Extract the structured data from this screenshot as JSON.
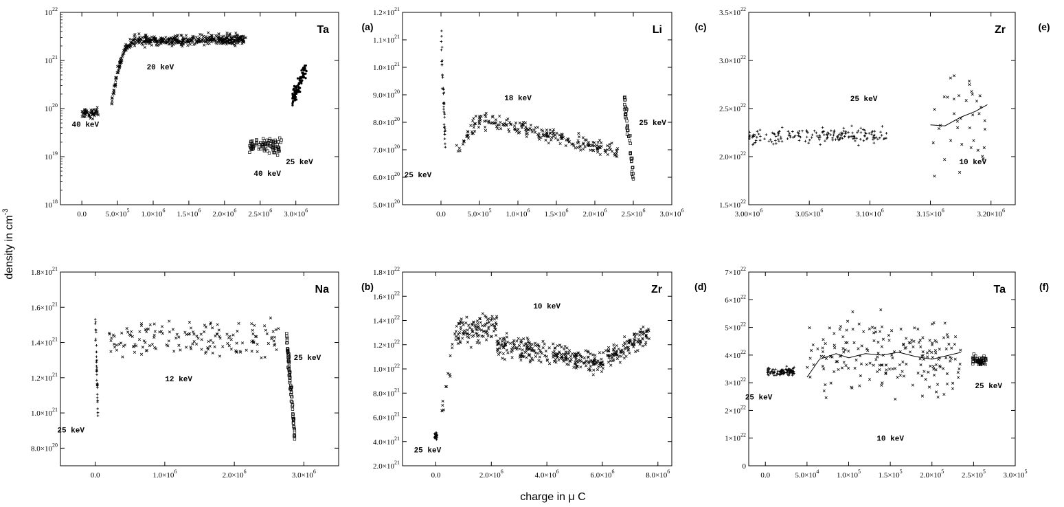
{
  "figure": {
    "ylabel": "density in cm",
    "ylabel_sup": "-3",
    "xlabel": "charge in μ C"
  },
  "chart_data": [
    {
      "panel": "a",
      "letter": "(a)",
      "element": "Ta",
      "type": "scatter",
      "log": true,
      "xlim": [
        -300000,
        3600000
      ],
      "ylim": [
        1e+18,
        1e+22
      ],
      "xticks": [
        {
          "v": 0,
          "m": "0.0",
          "e": ""
        },
        {
          "v": 500000,
          "m": "5.0×10",
          "e": "5"
        },
        {
          "v": 1000000,
          "m": "1.0×10",
          "e": "6"
        },
        {
          "v": 1500000,
          "m": "1.5×10",
          "e": "6"
        },
        {
          "v": 2000000,
          "m": "2.0×10",
          "e": "6"
        },
        {
          "v": 2500000,
          "m": "2.5×10",
          "e": "6"
        },
        {
          "v": 3000000,
          "m": "3.0×10",
          "e": "6"
        }
      ],
      "yticks": [
        {
          "v": 1e+18,
          "m": "10",
          "e": "18"
        },
        {
          "v": 1e+19,
          "m": "10",
          "e": "19"
        },
        {
          "v": 1e+20,
          "m": "10",
          "e": "20"
        },
        {
          "v": 1e+21,
          "m": "10",
          "e": "21"
        },
        {
          "v": 1e+22,
          "m": "10",
          "e": "22"
        }
      ],
      "annotations": [
        {
          "text": "40 keV",
          "x": 50000,
          "y": 4.2e+19
        },
        {
          "text": "20 keV",
          "x": 1100000,
          "y": 6.5e+20
        },
        {
          "text": "40 keV",
          "x": 2600000,
          "y": 4e+18
        },
        {
          "text": "25 keV",
          "x": 3050000,
          "y": 7e+18
        }
      ],
      "series": [
        {
          "marker": "x",
          "segments": [
            {
              "x": [
                0,
                240000
              ],
              "y": [
                8e+19,
                8e+19
              ],
              "n": 60,
              "spread": 0.08,
              "log": true
            },
            {
              "x": [
                400000,
                2300000
              ],
              "y": [
                2.5e+21,
                2.8e+21
              ],
              "n": 500,
              "spread": 0.09,
              "log": true,
              "rise": {
                "from": 8e+19,
                "k": 0.22
              }
            }
          ]
        },
        {
          "marker": "square",
          "segments": [
            {
              "x": [
                2350000,
                2800000
              ],
              "y": [
                1.6e+19,
                1.7e+19
              ],
              "n": 90,
              "spread": 0.15,
              "log": true
            }
          ]
        },
        {
          "marker": "dot",
          "segments": [
            {
              "x": [
                2950000,
                3150000
              ],
              "y": [
                1.5e+20,
                7e+20
              ],
              "n": 90,
              "spread": 0.15,
              "log": true
            }
          ]
        }
      ]
    },
    {
      "panel": "c",
      "letter": "(c)",
      "element": "Li",
      "type": "scatter",
      "log": false,
      "xlim": [
        -500000,
        3000000
      ],
      "ylim": [
        5e+20,
        1.2e+21
      ],
      "xticks": [
        {
          "v": 0,
          "m": "0.0",
          "e": ""
        },
        {
          "v": 500000,
          "m": "5.0×10",
          "e": "5"
        },
        {
          "v": 1000000,
          "m": "1.0×10",
          "e": "6"
        },
        {
          "v": 1500000,
          "m": "1.5×10",
          "e": "6"
        },
        {
          "v": 2000000,
          "m": "2.0×10",
          "e": "6"
        },
        {
          "v": 2500000,
          "m": "2.5×10",
          "e": "6"
        },
        {
          "v": 3000000,
          "m": "3.0×10",
          "e": "6"
        }
      ],
      "yticks": [
        {
          "v": 5e+20,
          "m": "5.0×10",
          "e": "20"
        },
        {
          "v": 6e+20,
          "m": "6.0×10",
          "e": "20"
        },
        {
          "v": 7e+20,
          "m": "7.0×10",
          "e": "20"
        },
        {
          "v": 8e+20,
          "m": "8.0×10",
          "e": "20"
        },
        {
          "v": 9e+20,
          "m": "9.0×10",
          "e": "20"
        },
        {
          "v": 1e+21,
          "m": "1.0×10",
          "e": "21"
        },
        {
          "v": 1.1e+21,
          "m": "1.1×10",
          "e": "21"
        },
        {
          "v": 1.2e+21,
          "m": "1.2×10",
          "e": "21"
        }
      ],
      "annotations": [
        {
          "text": "18 keV",
          "x": 1000000,
          "y": 8.8e+20
        },
        {
          "text": "25 keV",
          "x": -300000,
          "y": 6e+20
        },
        {
          "text": "25 keV",
          "x": 2750000,
          "y": 7.9e+20
        }
      ],
      "series": [
        {
          "marker": "plus",
          "segments": [
            {
              "x": [
                0,
                60000
              ],
              "y": [
                1.12e+21,
                7e+20
              ],
              "n": 40,
              "spread": 0.06,
              "log": false
            }
          ]
        },
        {
          "marker": "x",
          "segments": [
            {
              "x": [
                200000,
                500000
              ],
              "y": [
                7e+20,
                8.1e+20
              ],
              "n": 30,
              "spread": 0.03,
              "log": false
            },
            {
              "x": [
                500000,
                2300000
              ],
              "y": [
                8.1e+20,
                6.95e+20
              ],
              "n": 200,
              "spread": 0.03,
              "log": false
            }
          ]
        },
        {
          "marker": "square",
          "segments": [
            {
              "x": [
                2380000,
                2500000
              ],
              "y": [
                9e+20,
                6e+20
              ],
              "n": 45,
              "spread": 0.05,
              "log": false
            }
          ]
        }
      ]
    },
    {
      "panel": "e",
      "letter": "(e)",
      "element": "Zr",
      "type": "scatter",
      "log": false,
      "xlim": [
        3000000,
        3220000
      ],
      "ylim": [
        1.5e+22,
        3.5e+22
      ],
      "xticks": [
        {
          "v": 3000000,
          "m": "3.00×10",
          "e": "6"
        },
        {
          "v": 3050000,
          "m": "3.05×10",
          "e": "6"
        },
        {
          "v": 3100000,
          "m": "3.10×10",
          "e": "6"
        },
        {
          "v": 3150000,
          "m": "3.15×10",
          "e": "6"
        },
        {
          "v": 3200000,
          "m": "3.20×10",
          "e": "6"
        }
      ],
      "yticks": [
        {
          "v": 1.5e+22,
          "m": "1.5×10",
          "e": "22"
        },
        {
          "v": 2e+22,
          "m": "2.0×10",
          "e": "22"
        },
        {
          "v": 2.5e+22,
          "m": "2.5×10",
          "e": "22"
        },
        {
          "v": 3e+22,
          "m": "3.0×10",
          "e": "22"
        },
        {
          "v": 3.5e+22,
          "m": "3.5×10",
          "e": "22"
        }
      ],
      "annotations": [
        {
          "text": "25 keV",
          "x": 3095000,
          "y": 2.58e+22
        },
        {
          "text": "10 keV",
          "x": 3185000,
          "y": 1.92e+22
        }
      ],
      "series": [
        {
          "marker": "plus",
          "segments": [
            {
              "x": [
                3000000,
                3115000
              ],
              "y": [
                2.2e+22,
                2.23e+22
              ],
              "n": 170,
              "spread": 0.03,
              "log": false
            }
          ]
        },
        {
          "marker": "x",
          "segments": [
            {
              "x": [
                3148000,
                3198000
              ],
              "y": [
                2.3e+22,
                2.4e+22
              ],
              "n": 38,
              "spread": 0.2,
              "log": false
            }
          ]
        }
      ],
      "line": {
        "x": [
          3150000,
          3162000,
          3175000,
          3187000,
          3197000
        ],
        "y": [
          2.33e+22,
          2.32e+22,
          2.41e+22,
          2.47e+22,
          2.54e+22
        ]
      }
    },
    {
      "panel": "b",
      "letter": "(b)",
      "element": "Na",
      "type": "scatter",
      "log": false,
      "xlim": [
        -500000,
        3500000
      ],
      "ylim": [
        7e+20,
        1.8e+21
      ],
      "xticks": [
        {
          "v": 0,
          "m": "0.0",
          "e": ""
        },
        {
          "v": 1000000,
          "m": "1.0×10",
          "e": "6"
        },
        {
          "v": 2000000,
          "m": "2.0×10",
          "e": "6"
        },
        {
          "v": 3000000,
          "m": "3.0×10",
          "e": "6"
        }
      ],
      "yticks": [
        {
          "v": 8e+20,
          "m": "8.0×10",
          "e": "20"
        },
        {
          "v": 1e+21,
          "m": "1.0×10",
          "e": "21"
        },
        {
          "v": 1.2e+21,
          "m": "1.2×10",
          "e": "21"
        },
        {
          "v": 1.4e+21,
          "m": "1.4×10",
          "e": "21"
        },
        {
          "v": 1.6e+21,
          "m": "1.6×10",
          "e": "21"
        },
        {
          "v": 1.8e+21,
          "m": "1.8×10",
          "e": "21"
        }
      ],
      "annotations": [
        {
          "text": "25 keV",
          "x": -350000,
          "y": 8.9e+20
        },
        {
          "text": "12 keV",
          "x": 1200000,
          "y": 1.18e+21
        },
        {
          "text": "25 keV",
          "x": 3050000,
          "y": 1.3e+21
        }
      ],
      "series": [
        {
          "marker": "plus",
          "segments": [
            {
              "x": [
                0,
                40000
              ],
              "y": [
                1.55e+21,
                1e+21
              ],
              "n": 40,
              "spread": 0.06,
              "log": false
            }
          ]
        },
        {
          "marker": "x",
          "segments": [
            {
              "x": [
                200000,
                2650000
              ],
              "y": [
                1.42e+21,
                1.41e+21
              ],
              "n": 160,
              "spread": 0.06,
              "log": false
            }
          ]
        },
        {
          "marker": "square",
          "segments": [
            {
              "x": [
                2750000,
                2870000
              ],
              "y": [
                1.45e+21,
                8.6e+20
              ],
              "n": 80,
              "spread": 0.04,
              "log": false
            }
          ]
        }
      ]
    },
    {
      "panel": "d",
      "letter": "(d)",
      "element": "Zr",
      "type": "scatter",
      "log": false,
      "xlim": [
        -1200000,
        8500000
      ],
      "ylim": [
        2e+21,
        1.8e+22
      ],
      "xticks": [
        {
          "v": 0,
          "m": "0.0",
          "e": ""
        },
        {
          "v": 2000000,
          "m": "2.0×10",
          "e": "6"
        },
        {
          "v": 4000000,
          "m": "4.0×10",
          "e": "6"
        },
        {
          "v": 6000000,
          "m": "6.0×10",
          "e": "6"
        },
        {
          "v": 8000000,
          "m": "8.0×10",
          "e": "6"
        }
      ],
      "yticks": [
        {
          "v": 2e+21,
          "m": "2.0×10",
          "e": "21"
        },
        {
          "v": 4e+21,
          "m": "4.0×10",
          "e": "21"
        },
        {
          "v": 6e+21,
          "m": "6.0×10",
          "e": "21"
        },
        {
          "v": 8e+21,
          "m": "8.0×10",
          "e": "21"
        },
        {
          "v": 1e+22,
          "m": "1.0×10",
          "e": "22"
        },
        {
          "v": 1.2e+22,
          "m": "1.2×10",
          "e": "22"
        },
        {
          "v": 1.4e+22,
          "m": "1.4×10",
          "e": "22"
        },
        {
          "v": 1.6e+22,
          "m": "1.6×10",
          "e": "22"
        },
        {
          "v": 1.8e+22,
          "m": "1.8×10",
          "e": "22"
        }
      ],
      "annotations": [
        {
          "text": "10 keV",
          "x": 4000000,
          "y": 1.5e+22
        },
        {
          "text": "25 keV",
          "x": -300000,
          "y": 3.1e+21
        }
      ],
      "series": [
        {
          "marker": "plus",
          "segments": [
            {
              "x": [
                -50000,
                50000
              ],
              "y": [
                4.5e+21,
                4.5e+21
              ],
              "n": 25,
              "spread": 0.06,
              "log": false
            }
          ]
        },
        {
          "marker": "x",
          "segments": [
            {
              "x": [
                200000,
                700000
              ],
              "y": [
                6e+21,
                1.35e+22
              ],
              "n": 14,
              "spread": 0.1,
              "log": false
            },
            {
              "x": [
                700000,
                2200000
              ],
              "y": [
                1.3e+22,
                1.35e+22
              ],
              "n": 110,
              "spread": 0.08,
              "log": false
            },
            {
              "x": [
                2200000,
                6000000
              ],
              "y": [
                1.2e+22,
                1.05e+22
              ],
              "n": 260,
              "spread": 0.07,
              "log": false
            },
            {
              "x": [
                6000000,
                7700000
              ],
              "y": [
                1.05e+22,
                1.3e+22
              ],
              "n": 120,
              "spread": 0.07,
              "log": false
            }
          ]
        }
      ]
    },
    {
      "panel": "f",
      "letter": "(f)",
      "element": "Ta",
      "type": "scatter",
      "log": false,
      "xlim": [
        -20000,
        300000
      ],
      "ylim": [
        0,
        7e+22
      ],
      "xticks": [
        {
          "v": 0,
          "m": "0.0",
          "e": ""
        },
        {
          "v": 50000,
          "m": "5.0×10",
          "e": "4"
        },
        {
          "v": 100000,
          "m": "1.0×10",
          "e": "5"
        },
        {
          "v": 150000,
          "m": "1.5×10",
          "e": "5"
        },
        {
          "v": 200000,
          "m": "2.0×10",
          "e": "5"
        },
        {
          "v": 250000,
          "m": "2.5×10",
          "e": "5"
        },
        {
          "v": 300000,
          "m": "3.0×10",
          "e": "5"
        }
      ],
      "yticks": [
        {
          "v": 0,
          "m": "0",
          "e": ""
        },
        {
          "v": 1e+22,
          "m": "1×10",
          "e": "22"
        },
        {
          "v": 2e+22,
          "m": "2×10",
          "e": "22"
        },
        {
          "v": 3e+22,
          "m": "3×10",
          "e": "22"
        },
        {
          "v": 4e+22,
          "m": "4×10",
          "e": "22"
        },
        {
          "v": 5e+22,
          "m": "5×10",
          "e": "22"
        },
        {
          "v": 6e+22,
          "m": "6×10",
          "e": "22"
        },
        {
          "v": 7e+22,
          "m": "7×10",
          "e": "22"
        }
      ],
      "annotations": [
        {
          "text": "25 keV",
          "x": -8000,
          "y": 2.4e+22
        },
        {
          "text": "10 keV",
          "x": 150000,
          "y": 9e+21
        },
        {
          "text": "25 keV",
          "x": 268000,
          "y": 2.8e+22
        }
      ],
      "series": [
        {
          "marker": "plus",
          "segments": [
            {
              "x": [
                0,
                35000
              ],
              "y": [
                3.4e+22,
                3.4e+22
              ],
              "n": 100,
              "spread": 0.04,
              "log": false
            }
          ]
        },
        {
          "marker": "x",
          "segments": [
            {
              "x": [
                50000,
                235000
              ],
              "y": [
                4e+22,
                4e+22
              ],
              "n": 200,
              "spread": 0.28,
              "log": false
            }
          ]
        },
        {
          "marker": "square",
          "segments": [
            {
              "x": [
                248000,
                265000
              ],
              "y": [
                3.8e+22,
                3.8e+22
              ],
              "n": 50,
              "spread": 0.04,
              "log": false
            }
          ]
        }
      ],
      "line": {
        "x": [
          50000,
          65000,
          85000,
          100000,
          120000,
          140000,
          160000,
          180000,
          200000,
          235000
        ],
        "y": [
          3.2e+22,
          3.85e+22,
          4.05e+22,
          3.9e+22,
          4.05e+22,
          4e+22,
          4.1e+22,
          3.95e+22,
          3.85e+22,
          4.1e+22
        ]
      }
    }
  ]
}
